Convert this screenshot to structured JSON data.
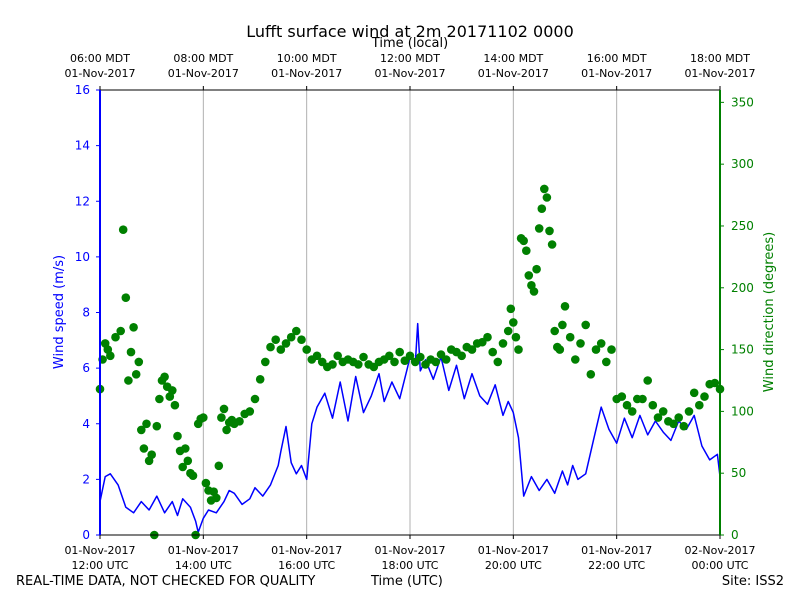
{
  "chart_data": {
    "type": "line+scatter",
    "title": "Lufft surface wind at 2m 20171102 0000",
    "top_axis_label": "Time (local)",
    "xlabel": "Time (UTC)",
    "ylabel_left": "Wind speed (m/s)",
    "ylabel_right": "Wind direction (degrees)",
    "x_range_hours_utc": [
      12,
      24
    ],
    "ylim_left": [
      0,
      16
    ],
    "ylim_right": [
      0,
      360
    ],
    "yticks_left": [
      0,
      2,
      4,
      6,
      8,
      10,
      12,
      14,
      16
    ],
    "yticks_right": [
      0,
      50,
      100,
      150,
      200,
      250,
      300,
      350
    ],
    "grid": "vertical",
    "colors": {
      "speed": "#0000ff",
      "direction": "#008000",
      "axis": "#000000",
      "grid": "#b0b0b0"
    },
    "bottom_ticks": [
      {
        "hour": 12,
        "line1": "01-Nov-2017",
        "line2": "12:00 UTC"
      },
      {
        "hour": 14,
        "line1": "01-Nov-2017",
        "line2": "14:00 UTC"
      },
      {
        "hour": 16,
        "line1": "01-Nov-2017",
        "line2": "16:00 UTC"
      },
      {
        "hour": 18,
        "line1": "01-Nov-2017",
        "line2": "18:00 UTC"
      },
      {
        "hour": 20,
        "line1": "01-Nov-2017",
        "line2": "20:00 UTC"
      },
      {
        "hour": 22,
        "line1": "01-Nov-2017",
        "line2": "22:00 UTC"
      },
      {
        "hour": 24,
        "line1": "02-Nov-2017",
        "line2": "00:00 UTC"
      }
    ],
    "top_ticks": [
      {
        "hour": 12,
        "line1": "06:00 MDT",
        "line2": "01-Nov-2017"
      },
      {
        "hour": 14,
        "line1": "08:00 MDT",
        "line2": "01-Nov-2017"
      },
      {
        "hour": 16,
        "line1": "10:00 MDT",
        "line2": "01-Nov-2017"
      },
      {
        "hour": 18,
        "line1": "12:00 MDT",
        "line2": "01-Nov-2017"
      },
      {
        "hour": 20,
        "line1": "14:00 MDT",
        "line2": "01-Nov-2017"
      },
      {
        "hour": 22,
        "line1": "16:00 MDT",
        "line2": "01-Nov-2017"
      },
      {
        "hour": 24,
        "line1": "18:00 MDT",
        "line2": "01-Nov-2017"
      }
    ],
    "wind_speed_series": {
      "name": "Wind speed (m/s)",
      "x": [
        12.0,
        12.1,
        12.2,
        12.35,
        12.5,
        12.65,
        12.8,
        12.95,
        13.1,
        13.25,
        13.4,
        13.5,
        13.6,
        13.75,
        13.85,
        13.9,
        14.0,
        14.1,
        14.25,
        14.4,
        14.5,
        14.6,
        14.75,
        14.9,
        15.0,
        15.15,
        15.3,
        15.45,
        15.5,
        15.6,
        15.7,
        15.8,
        15.9,
        16.0,
        16.1,
        16.2,
        16.35,
        16.5,
        16.65,
        16.8,
        16.95,
        17.1,
        17.25,
        17.4,
        17.5,
        17.65,
        17.8,
        17.95,
        18.0,
        18.1,
        18.15,
        18.2,
        18.3,
        18.45,
        18.6,
        18.75,
        18.9,
        19.05,
        19.2,
        19.35,
        19.5,
        19.65,
        19.8,
        19.9,
        20.0,
        20.1,
        20.2,
        20.35,
        20.5,
        20.65,
        20.8,
        20.95,
        21.05,
        21.15,
        21.25,
        21.4,
        21.55,
        21.7,
        21.85,
        22.0,
        22.15,
        22.3,
        22.45,
        22.6,
        22.75,
        22.9,
        23.05,
        23.2,
        23.35,
        23.5,
        23.65,
        23.8,
        23.95,
        24.0
      ],
      "values": [
        1.2,
        2.1,
        2.2,
        1.8,
        1.0,
        0.8,
        1.2,
        0.9,
        1.4,
        0.8,
        1.2,
        0.7,
        1.3,
        1.0,
        0.5,
        0.1,
        0.6,
        0.9,
        0.8,
        1.2,
        1.6,
        1.5,
        1.1,
        1.3,
        1.7,
        1.4,
        1.8,
        2.5,
        3.0,
        3.9,
        2.6,
        2.2,
        2.5,
        2.0,
        4.0,
        4.6,
        5.1,
        4.2,
        5.5,
        4.1,
        5.7,
        4.4,
        5.0,
        5.8,
        4.8,
        5.5,
        4.9,
        6.0,
        6.4,
        6.1,
        7.6,
        5.9,
        6.3,
        5.6,
        6.4,
        5.2,
        6.1,
        4.9,
        5.8,
        5.0,
        4.7,
        5.4,
        4.3,
        4.8,
        4.4,
        3.5,
        1.4,
        2.1,
        1.6,
        2.0,
        1.5,
        2.3,
        1.8,
        2.5,
        2.0,
        2.2,
        3.4,
        4.6,
        3.8,
        3.3,
        4.2,
        3.5,
        4.3,
        3.6,
        4.1,
        3.7,
        3.4,
        4.1,
        3.8,
        4.3,
        3.2,
        2.7,
        2.9,
        2.1
      ]
    },
    "wind_direction_series": {
      "name": "Wind direction (degrees)",
      "x": [
        12.0,
        12.05,
        12.1,
        12.15,
        12.2,
        12.3,
        12.4,
        12.45,
        12.5,
        12.55,
        12.6,
        12.65,
        12.7,
        12.75,
        12.8,
        12.85,
        12.9,
        12.95,
        13.0,
        13.05,
        13.1,
        13.15,
        13.2,
        13.25,
        13.3,
        13.35,
        13.4,
        13.45,
        13.5,
        13.55,
        13.6,
        13.65,
        13.7,
        13.75,
        13.8,
        13.85,
        13.9,
        13.95,
        14.0,
        14.05,
        14.1,
        14.15,
        14.2,
        14.25,
        14.3,
        14.35,
        14.4,
        14.45,
        14.5,
        14.55,
        14.6,
        14.7,
        14.8,
        14.9,
        15.0,
        15.1,
        15.2,
        15.3,
        15.4,
        15.5,
        15.6,
        15.7,
        15.8,
        15.9,
        16.0,
        16.1,
        16.2,
        16.3,
        16.4,
        16.5,
        16.6,
        16.7,
        16.8,
        16.9,
        17.0,
        17.1,
        17.2,
        17.3,
        17.4,
        17.5,
        17.6,
        17.7,
        17.8,
        17.9,
        18.0,
        18.1,
        18.2,
        18.3,
        18.4,
        18.5,
        18.6,
        18.7,
        18.8,
        18.9,
        19.0,
        19.1,
        19.2,
        19.3,
        19.4,
        19.5,
        19.6,
        19.7,
        19.8,
        19.9,
        19.95,
        20.0,
        20.05,
        20.1,
        20.15,
        20.2,
        20.25,
        20.3,
        20.35,
        20.4,
        20.45,
        20.5,
        20.55,
        20.6,
        20.65,
        20.7,
        20.75,
        20.8,
        20.85,
        20.9,
        20.95,
        21.0,
        21.1,
        21.2,
        21.3,
        21.4,
        21.5,
        21.6,
        21.7,
        21.8,
        21.9,
        22.0,
        22.1,
        22.2,
        22.3,
        22.4,
        22.5,
        22.6,
        22.7,
        22.8,
        22.9,
        23.0,
        23.1,
        23.2,
        23.3,
        23.4,
        23.5,
        23.6,
        23.7,
        23.8,
        23.9,
        24.0
      ],
      "values": [
        118,
        142,
        155,
        150,
        145,
        160,
        165,
        247,
        192,
        125,
        148,
        168,
        130,
        140,
        85,
        70,
        90,
        60,
        65,
        0,
        88,
        110,
        125,
        128,
        120,
        112,
        117,
        105,
        80,
        68,
        55,
        70,
        60,
        50,
        48,
        0,
        90,
        94,
        95,
        42,
        36,
        28,
        35,
        30,
        56,
        95,
        102,
        85,
        91,
        93,
        90,
        92,
        98,
        100,
        110,
        126,
        140,
        152,
        158,
        150,
        155,
        160,
        165,
        158,
        150,
        142,
        145,
        140,
        136,
        138,
        145,
        140,
        142,
        140,
        138,
        144,
        138,
        136,
        140,
        142,
        145,
        140,
        148,
        141,
        145,
        140,
        144,
        138,
        142,
        140,
        146,
        142,
        150,
        148,
        145,
        152,
        150,
        155,
        156,
        160,
        148,
        140,
        155,
        165,
        183,
        172,
        160,
        150,
        240,
        238,
        230,
        210,
        202,
        197,
        215,
        248,
        264,
        280,
        273,
        246,
        235,
        165,
        152,
        150,
        170,
        185,
        160,
        142,
        155,
        170,
        130,
        150,
        155,
        140,
        150,
        110,
        112,
        105,
        100,
        110,
        110,
        125,
        105,
        95,
        100,
        92,
        90,
        95,
        88,
        100,
        115,
        105,
        112,
        122,
        123,
        118
      ]
    }
  },
  "footer": {
    "left": "REAL-TIME DATA, NOT CHECKED FOR QUALITY",
    "center": "Time (UTC)",
    "right": "Site: ISS2"
  }
}
